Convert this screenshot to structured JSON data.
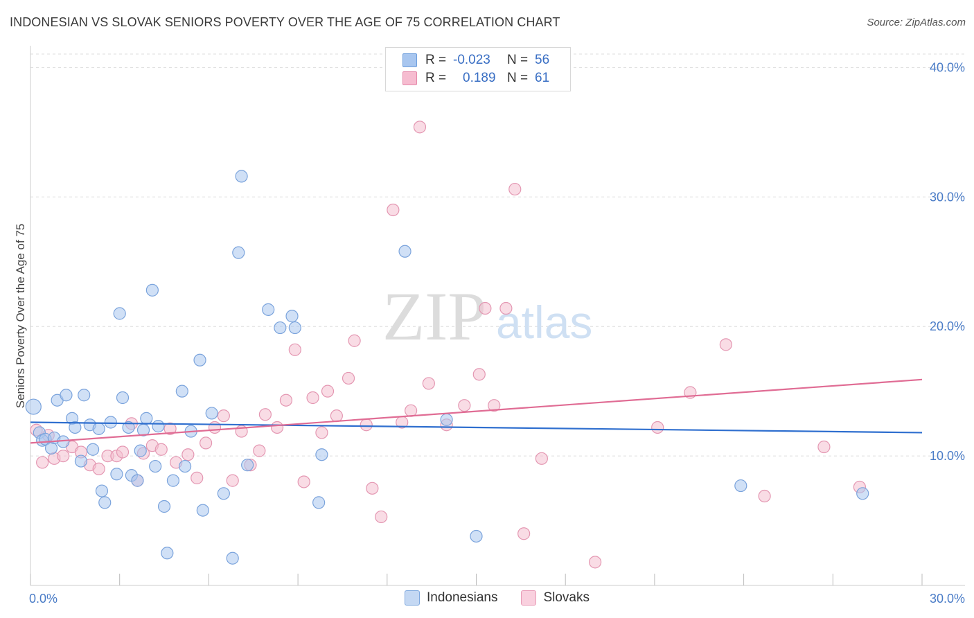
{
  "header": {
    "title": "INDONESIAN VS SLOVAK SENIORS POVERTY OVER THE AGE OF 75 CORRELATION CHART",
    "source": "Source: ZipAtlas.com"
  },
  "watermark": {
    "zip": "ZIP",
    "atlas": "atlas"
  },
  "stats": [
    {
      "r_label": "R =",
      "r_value": "-0.023",
      "n_label": "N =",
      "n_value": "56",
      "color": "#a8c6ef",
      "border": "#6f9fdc"
    },
    {
      "r_label": "R =",
      "r_value": "0.189",
      "n_label": "N =",
      "n_value": "61",
      "color": "#f6bcd0",
      "border": "#e58aab"
    }
  ],
  "legend": [
    {
      "label": "Indonesians",
      "color": "#c4d8f3",
      "border": "#7ea8de"
    },
    {
      "label": "Slovaks",
      "color": "#f9d0de",
      "border": "#e89ab6"
    }
  ],
  "colors": {
    "indonesians_fill": "#a9c7ee",
    "indonesians_stroke": "#7aa3dc",
    "indonesians_line": "#2f6fcf",
    "slovaks_fill": "#f4bfd0",
    "slovaks_stroke": "#e497b2",
    "slovaks_line": "#e06c94",
    "axis_label": "#4a7cc7",
    "grid": "#dddddd"
  },
  "chart_data": {
    "type": "scatter",
    "title": "INDONESIAN VS SLOVAK SENIORS POVERTY OVER THE AGE OF 75 CORRELATION CHART",
    "xlabel": "",
    "ylabel": "Seniors Poverty Over the Age of 75",
    "xlim": [
      0,
      30
    ],
    "ylim": [
      0,
      42
    ],
    "x_tick_labels": [
      "0.0%",
      "30.0%"
    ],
    "y_ticks": [
      10,
      20,
      30,
      40
    ],
    "y_tick_labels": [
      "10.0%",
      "20.0%",
      "30.0%",
      "40.0%"
    ],
    "grid": "horizontal dashed",
    "legend_position": "bottom-center",
    "series": [
      {
        "name": "Indonesians",
        "r": -0.023,
        "n": 56,
        "trend": {
          "x": [
            0,
            30
          ],
          "y": [
            12.6,
            11.8
          ]
        },
        "points": [
          [
            0.1,
            13.8
          ],
          [
            0.3,
            11.8
          ],
          [
            0.4,
            11.2
          ],
          [
            0.5,
            11.3
          ],
          [
            0.7,
            10.6
          ],
          [
            0.8,
            11.4
          ],
          [
            0.9,
            14.3
          ],
          [
            1.1,
            11.1
          ],
          [
            1.2,
            14.7
          ],
          [
            1.4,
            12.9
          ],
          [
            1.5,
            12.2
          ],
          [
            1.7,
            9.6
          ],
          [
            1.8,
            14.7
          ],
          [
            2.0,
            12.4
          ],
          [
            2.1,
            10.5
          ],
          [
            2.3,
            12.1
          ],
          [
            2.4,
            7.3
          ],
          [
            2.5,
            6.4
          ],
          [
            2.7,
            12.6
          ],
          [
            2.9,
            8.6
          ],
          [
            3.0,
            21.0
          ],
          [
            3.1,
            14.5
          ],
          [
            3.3,
            12.2
          ],
          [
            3.4,
            8.5
          ],
          [
            3.6,
            8.1
          ],
          [
            3.7,
            10.4
          ],
          [
            3.8,
            12.0
          ],
          [
            3.9,
            12.9
          ],
          [
            4.1,
            22.8
          ],
          [
            4.2,
            9.2
          ],
          [
            4.3,
            12.3
          ],
          [
            4.5,
            6.1
          ],
          [
            4.6,
            2.5
          ],
          [
            4.8,
            8.1
          ],
          [
            5.1,
            15.0
          ],
          [
            5.2,
            9.2
          ],
          [
            5.4,
            11.9
          ],
          [
            5.7,
            17.4
          ],
          [
            5.8,
            5.8
          ],
          [
            6.1,
            13.3
          ],
          [
            6.5,
            7.1
          ],
          [
            6.8,
            2.1
          ],
          [
            7.0,
            25.7
          ],
          [
            7.1,
            31.6
          ],
          [
            7.3,
            9.3
          ],
          [
            8.0,
            21.3
          ],
          [
            8.4,
            19.9
          ],
          [
            8.8,
            20.8
          ],
          [
            8.9,
            19.9
          ],
          [
            9.7,
            6.4
          ],
          [
            9.8,
            10.1
          ],
          [
            12.6,
            25.8
          ],
          [
            14.0,
            12.8
          ],
          [
            15.0,
            3.8
          ],
          [
            23.9,
            7.7
          ],
          [
            28.0,
            7.1
          ]
        ]
      },
      {
        "name": "Slovaks",
        "r": 0.189,
        "n": 61,
        "trend": {
          "x": [
            0,
            30
          ],
          "y": [
            11.0,
            15.9
          ]
        },
        "points": [
          [
            0.2,
            12.0
          ],
          [
            0.4,
            9.5
          ],
          [
            0.6,
            11.6
          ],
          [
            0.8,
            9.8
          ],
          [
            1.1,
            10.0
          ],
          [
            1.4,
            10.7
          ],
          [
            1.7,
            10.3
          ],
          [
            2.0,
            9.3
          ],
          [
            2.3,
            9.0
          ],
          [
            2.6,
            10.0
          ],
          [
            2.9,
            10.0
          ],
          [
            3.1,
            10.3
          ],
          [
            3.4,
            12.5
          ],
          [
            3.6,
            8.1
          ],
          [
            3.8,
            10.2
          ],
          [
            4.1,
            10.8
          ],
          [
            4.4,
            10.5
          ],
          [
            4.7,
            12.1
          ],
          [
            4.9,
            9.5
          ],
          [
            5.3,
            10.1
          ],
          [
            5.6,
            8.3
          ],
          [
            5.9,
            11.0
          ],
          [
            6.2,
            12.2
          ],
          [
            6.5,
            13.1
          ],
          [
            6.8,
            8.1
          ],
          [
            7.1,
            11.9
          ],
          [
            7.4,
            9.3
          ],
          [
            7.7,
            10.4
          ],
          [
            7.9,
            13.2
          ],
          [
            8.3,
            12.2
          ],
          [
            8.6,
            14.3
          ],
          [
            8.9,
            18.2
          ],
          [
            9.2,
            8.0
          ],
          [
            9.5,
            14.5
          ],
          [
            9.8,
            11.8
          ],
          [
            10.0,
            15.0
          ],
          [
            10.3,
            13.1
          ],
          [
            10.7,
            16.0
          ],
          [
            10.9,
            18.9
          ],
          [
            11.3,
            12.4
          ],
          [
            11.5,
            7.5
          ],
          [
            11.8,
            5.3
          ],
          [
            12.2,
            29.0
          ],
          [
            12.5,
            12.6
          ],
          [
            12.8,
            13.5
          ],
          [
            13.1,
            35.4
          ],
          [
            13.4,
            15.6
          ],
          [
            14.0,
            12.4
          ],
          [
            14.6,
            13.9
          ],
          [
            15.1,
            16.3
          ],
          [
            15.3,
            21.4
          ],
          [
            15.6,
            13.9
          ],
          [
            16.0,
            21.4
          ],
          [
            16.3,
            30.6
          ],
          [
            16.6,
            4.0
          ],
          [
            17.2,
            9.8
          ],
          [
            19.0,
            1.8
          ],
          [
            21.1,
            12.2
          ],
          [
            22.2,
            14.9
          ],
          [
            23.4,
            18.6
          ],
          [
            24.7,
            6.9
          ],
          [
            26.7,
            10.7
          ],
          [
            27.9,
            7.6
          ]
        ]
      }
    ]
  }
}
